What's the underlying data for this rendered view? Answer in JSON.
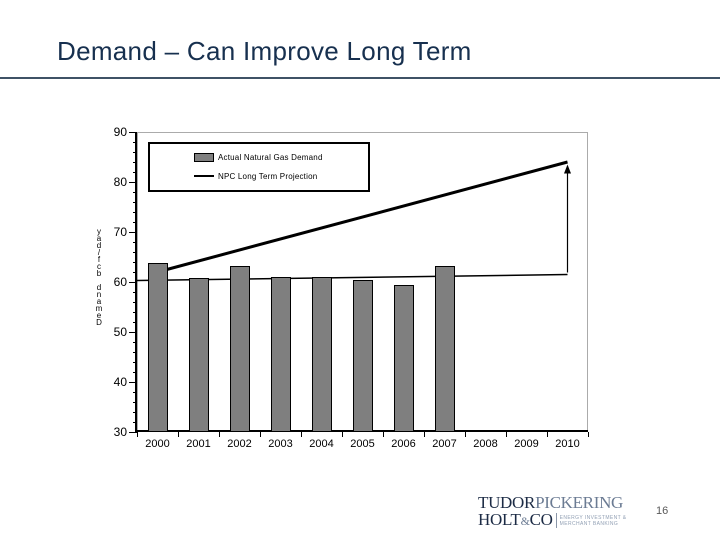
{
  "slide": {
    "title": "Demand – Can Improve Long Term",
    "page_number": "16"
  },
  "logo": {
    "line1_dark": "TUDOR",
    "line1_light": "PICKERING",
    "line2_dark": "HOLT",
    "line2_amp": "&",
    "line2_co": "CO",
    "tagline_line1": "ENERGY INVESTMENT &",
    "tagline_line2": "MERCHANT BANKING"
  },
  "chart_data": {
    "type": "bar",
    "title": "",
    "categories": [
      "2000",
      "2001",
      "2002",
      "2003",
      "2004",
      "2005",
      "2006",
      "2007",
      "2008",
      "2009",
      "2010"
    ],
    "series": [
      {
        "name": "Actual Natural Gas Demand",
        "type": "bar",
        "color": "#7f7f7f",
        "values": [
          63.8,
          60.9,
          63.2,
          61.1,
          61.1,
          60.4,
          59.4,
          63.2,
          null,
          null,
          null
        ]
      },
      {
        "name": "NPC Long Term Projection",
        "type": "line",
        "color": "#000000",
        "stroke_width": 3,
        "points": [
          {
            "x": 2000,
            "y": 62
          },
          {
            "x": 2010,
            "y": 84
          }
        ]
      },
      {
        "name": "Actual demand trend (unlabeled thin line)",
        "type": "line",
        "color": "#000000",
        "stroke_width": 1.5,
        "extends_to_axis": true,
        "in_legend": false,
        "points": [
          {
            "x": 2000,
            "y": 60.3
          },
          {
            "x": 2010,
            "y": 61.5
          }
        ]
      }
    ],
    "annotations": [
      {
        "type": "vertical-arrow",
        "x": 2010,
        "y_from": 61.5,
        "y_to": 83.5
      }
    ],
    "xlabel": "",
    "ylabel": "Demand bcf/day",
    "ylim": [
      30,
      90
    ],
    "y_major_ticks": [
      90,
      80,
      70,
      60,
      50,
      40,
      30
    ],
    "y_minor_step": 2,
    "grid": false,
    "legend_position": "upper-left-inside"
  }
}
